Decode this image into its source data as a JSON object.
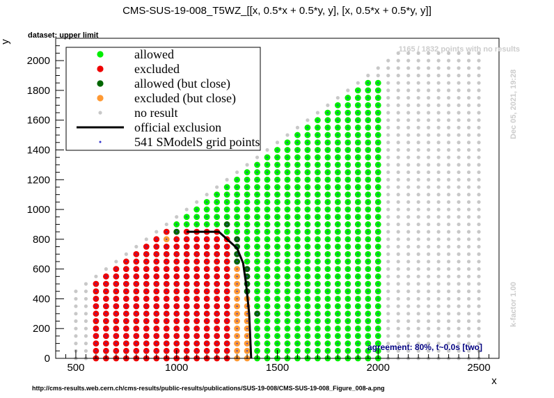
{
  "title": "CMS-SUS-19-008_T5WZ_[[x, 0.5*x + 0.5*y, y], [x, 0.5*x + 0.5*y, y]]",
  "subtitle": "dataset: upper limit",
  "no_results_note": "1165 / 1832 points with no results",
  "timestamp": "Dec 05, 2021, 19:28",
  "kfactor": "k-factor 1.00",
  "agreement": "agreement: 80%, t~0.0s [two]",
  "source_url": "http://cms-results.web.cern.ch/cms-results/public-results/publications/SUS-19-008/CMS-SUS-19-008_Figure_008-a.png",
  "colors": {
    "allowed": "#00ee00",
    "excluded": "#ee0000",
    "allowed_close": "#006600",
    "excluded_close": "#ff9933",
    "no_result": "#c8c8c8",
    "official": "#000000",
    "grid_point": "#3333cc",
    "agreement_text": "#000080",
    "meta_text": "#cccccc"
  },
  "chart_data": {
    "type": "scatter",
    "xlabel": "x",
    "ylabel": "y",
    "xlim": [
      400,
      2600
    ],
    "ylim": [
      0,
      2150
    ],
    "xticks": [
      500,
      1000,
      1500,
      2000,
      2500
    ],
    "yticks": [
      0,
      200,
      400,
      600,
      800,
      1000,
      1200,
      1400,
      1600,
      1800,
      2000
    ],
    "grid": false,
    "legend_position": "top-left",
    "legend": [
      {
        "key": "allowed",
        "label": "allowed"
      },
      {
        "key": "excluded",
        "label": "excluded"
      },
      {
        "key": "allowed_close",
        "label": "allowed (but close)"
      },
      {
        "key": "excluded_close",
        "label": "excluded (but close)"
      },
      {
        "key": "no_result",
        "label": "no result"
      },
      {
        "key": "official",
        "label": "official exclusion"
      },
      {
        "key": "grid_point",
        "label": "541 SModelS grid points"
      }
    ],
    "grid_spec": {
      "x_start": 500,
      "x_step": 50,
      "x_end": 2500,
      "y_start": 0,
      "y_step": 50,
      "y_max_offset_from_x": 50,
      "valid_x_start": 600,
      "valid_x_end": 2000,
      "valid_y_max": 1850
    },
    "official_exclusion": [
      [
        1050,
        850
      ],
      [
        1210,
        850
      ],
      [
        1300,
        740
      ],
      [
        1330,
        640
      ],
      [
        1345,
        500
      ],
      [
        1360,
        300
      ],
      [
        1370,
        0
      ]
    ],
    "excluded_close_points": [
      [
        1300,
        0
      ],
      [
        1300,
        50
      ],
      [
        1300,
        100
      ],
      [
        1300,
        150
      ],
      [
        1300,
        200
      ],
      [
        1300,
        250
      ],
      [
        1300,
        300
      ],
      [
        1300,
        350
      ],
      [
        1300,
        400
      ],
      [
        1300,
        450
      ],
      [
        1300,
        500
      ],
      [
        1300,
        550
      ],
      [
        1300,
        600
      ],
      [
        1350,
        0
      ],
      [
        1350,
        50
      ],
      [
        1350,
        100
      ],
      [
        1350,
        150
      ],
      [
        1350,
        200
      ],
      [
        1350,
        250
      ],
      [
        1350,
        300
      ],
      [
        1350,
        350
      ],
      [
        1350,
        400
      ],
      [
        950,
        800
      ]
    ],
    "allowed_close_points": [
      [
        1000,
        850
      ],
      [
        1250,
        900
      ],
      [
        1300,
        800
      ],
      [
        1300,
        750
      ],
      [
        1300,
        700
      ],
      [
        1300,
        650
      ],
      [
        1350,
        450
      ],
      [
        1350,
        500
      ],
      [
        1350,
        550
      ],
      [
        1350,
        600
      ],
      [
        1400,
        300
      ]
    ]
  }
}
